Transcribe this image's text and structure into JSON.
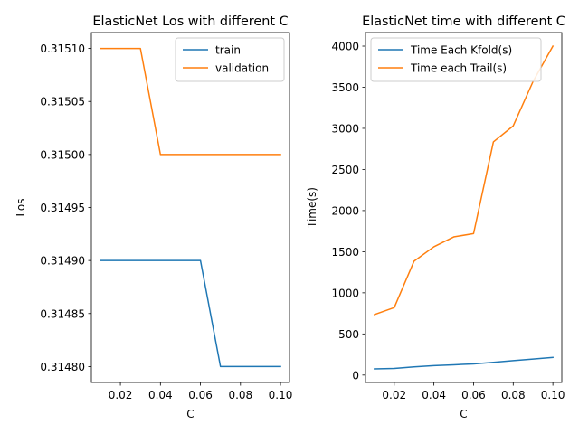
{
  "chart_data": [
    {
      "type": "line",
      "title": "ElasticNet Los with different C",
      "xlabel": "C",
      "ylabel": "Los",
      "xlim": [
        0.0055,
        0.1045
      ],
      "ylim": [
        0.314785,
        0.315115
      ],
      "xticks": [
        0.02,
        0.04,
        0.06,
        0.08,
        0.1
      ],
      "xtick_labels": [
        "0.02",
        "0.04",
        "0.06",
        "0.08",
        "0.10"
      ],
      "yticks": [
        0.3148,
        0.31485,
        0.3149,
        0.31495,
        0.315,
        0.31505,
        0.3151
      ],
      "ytick_labels": [
        "0.31480",
        "0.31485",
        "0.31490",
        "0.31495",
        "0.31500",
        "0.31505",
        "0.31510"
      ],
      "grid": false,
      "legend_position": "upper-right",
      "x": [
        0.01,
        0.02,
        0.03,
        0.04,
        0.05,
        0.06,
        0.07,
        0.08,
        0.09,
        0.1
      ],
      "series": [
        {
          "name": "train",
          "color": "#1f77b4",
          "values": [
            0.3149,
            0.3149,
            0.3149,
            0.3149,
            0.3149,
            0.3149,
            0.3148,
            0.3148,
            0.3148,
            0.3148
          ]
        },
        {
          "name": "validation",
          "color": "#ff7f0e",
          "values": [
            0.3151,
            0.3151,
            0.3151,
            0.315,
            0.315,
            0.315,
            0.315,
            0.315,
            0.315,
            0.315
          ]
        }
      ]
    },
    {
      "type": "line",
      "title": "ElasticNet time with different C",
      "xlabel": "C",
      "ylabel": "Time(s)",
      "xlim": [
        0.0055,
        0.1045
      ],
      "ylim": [
        -90,
        4165
      ],
      "xticks": [
        0.02,
        0.04,
        0.06,
        0.08,
        0.1
      ],
      "xtick_labels": [
        "0.02",
        "0.04",
        "0.06",
        "0.08",
        "0.10"
      ],
      "yticks": [
        0,
        500,
        1000,
        1500,
        2000,
        2500,
        3000,
        3500,
        4000
      ],
      "ytick_labels": [
        "0",
        "500",
        "1000",
        "1500",
        "2000",
        "2500",
        "3000",
        "3500",
        "4000"
      ],
      "grid": false,
      "legend_position": "upper-left",
      "x": [
        0.01,
        0.02,
        0.03,
        0.04,
        0.05,
        0.06,
        0.07,
        0.08,
        0.09,
        0.1
      ],
      "series": [
        {
          "name": "Time Each Kfold(s)",
          "color": "#1f77b4",
          "values": [
            75,
            80,
            100,
            115,
            125,
            135,
            155,
            175,
            195,
            215
          ]
        },
        {
          "name": "Time each Trail(s)",
          "color": "#ff7f0e",
          "values": [
            735,
            820,
            1385,
            1560,
            1680,
            1720,
            2835,
            3030,
            3570,
            4000
          ]
        }
      ]
    }
  ]
}
